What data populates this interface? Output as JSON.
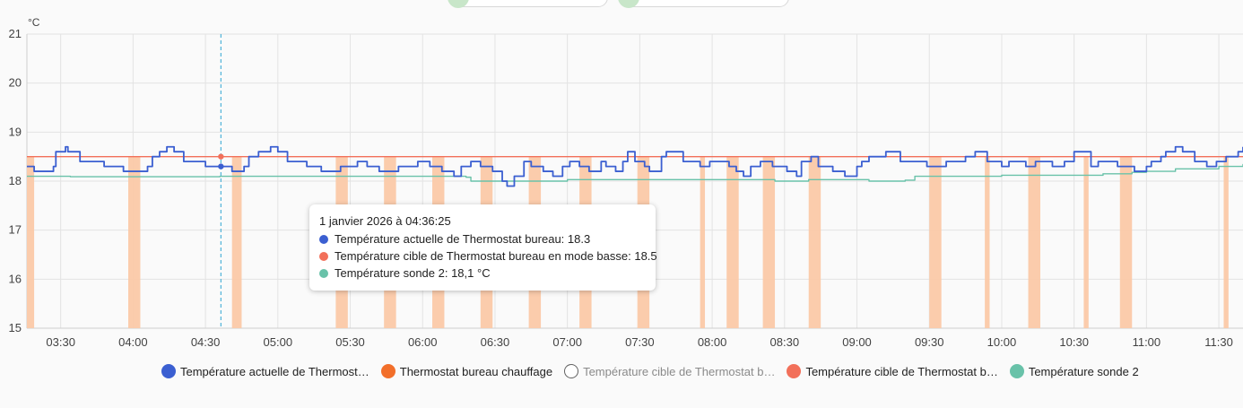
{
  "top_pills": [
    {
      "label": ""
    },
    {
      "label": ""
    }
  ],
  "tooltip": {
    "header": "1 janvier 2026 à 04:36:25",
    "rows": [
      {
        "text": "Température actuelle de Thermostat bureau: 18.3",
        "color": "#3b5fd1"
      },
      {
        "text": "Température cible de Thermostat bureau en mode basse: 18.5",
        "color": "#f2705a"
      },
      {
        "text": "Température sonde 2: 18,1 °C",
        "color": "#69c2a9"
      }
    ]
  },
  "legend": [
    {
      "label": "Température actuelle de Thermost…",
      "color": "#3b5fd1",
      "hidden": false
    },
    {
      "label": "Thermostat bureau chauffage",
      "color": "#f26f2a",
      "hidden": false
    },
    {
      "label": "Température cible de Thermostat b…",
      "color": "#9e9e9e",
      "hidden": true
    },
    {
      "label": "Température cible de Thermostat b…",
      "color": "#f2705a",
      "hidden": false
    },
    {
      "label": "Température sonde 2",
      "color": "#69c2a9",
      "hidden": false
    }
  ],
  "chart_data": {
    "type": "line",
    "ylabel": "°C",
    "ylim": [
      15,
      21
    ],
    "yticks": [
      15,
      16,
      17,
      18,
      19,
      20,
      21
    ],
    "xlim": [
      "03:16",
      "11:40"
    ],
    "xticks": [
      "03:30",
      "04:00",
      "04:30",
      "05:00",
      "05:30",
      "06:00",
      "06:30",
      "07:00",
      "07:30",
      "08:00",
      "08:30",
      "09:00",
      "09:30",
      "10:00",
      "10:30",
      "11:00",
      "11:30"
    ],
    "grid": true,
    "cursor_time": "04:36:25",
    "heating_periods": [
      [
        "03:16",
        "03:19"
      ],
      [
        "03:58",
        "04:03"
      ],
      [
        "04:41",
        "04:45"
      ],
      [
        "05:24",
        "05:29"
      ],
      [
        "05:44",
        "05:49"
      ],
      [
        "06:04",
        "06:09"
      ],
      [
        "06:24",
        "06:29"
      ],
      [
        "06:44",
        "06:49"
      ],
      [
        "07:05",
        "07:10"
      ],
      [
        "07:29",
        "07:34"
      ],
      [
        "07:55",
        "07:57"
      ],
      [
        "08:06",
        "08:11"
      ],
      [
        "08:21",
        "08:26"
      ],
      [
        "08:40",
        "08:45"
      ],
      [
        "09:30",
        "09:35"
      ],
      [
        "09:53",
        "09:55"
      ],
      [
        "10:11",
        "10:16"
      ],
      [
        "10:34",
        "10:36"
      ],
      [
        "10:49",
        "10:54"
      ],
      [
        "11:32",
        "11:34"
      ]
    ],
    "series": [
      {
        "name": "Température actuelle de Thermostat bureau",
        "color": "#3b5fd1",
        "points": [
          [
            "03:16",
            18.3
          ],
          [
            "03:19",
            18.2
          ],
          [
            "03:27",
            18.3
          ],
          [
            "03:28",
            18.6
          ],
          [
            "03:32",
            18.7
          ],
          [
            "03:33",
            18.6
          ],
          [
            "03:38",
            18.4
          ],
          [
            "03:48",
            18.3
          ],
          [
            "03:56",
            18.2
          ],
          [
            "04:06",
            18.3
          ],
          [
            "04:08",
            18.5
          ],
          [
            "04:11",
            18.6
          ],
          [
            "04:14",
            18.7
          ],
          [
            "04:17",
            18.6
          ],
          [
            "04:21",
            18.4
          ],
          [
            "04:30",
            18.3
          ],
          [
            "04:36",
            18.3
          ],
          [
            "04:41",
            18.2
          ],
          [
            "04:46",
            18.3
          ],
          [
            "04:48",
            18.5
          ],
          [
            "04:52",
            18.6
          ],
          [
            "04:57",
            18.7
          ],
          [
            "05:00",
            18.6
          ],
          [
            "05:04",
            18.4
          ],
          [
            "05:12",
            18.3
          ],
          [
            "05:18",
            18.2
          ],
          [
            "05:26",
            18.3
          ],
          [
            "05:33",
            18.4
          ],
          [
            "05:37",
            18.3
          ],
          [
            "05:42",
            18.2
          ],
          [
            "05:50",
            18.3
          ],
          [
            "05:58",
            18.4
          ],
          [
            "06:03",
            18.3
          ],
          [
            "06:08",
            18.2
          ],
          [
            "06:13",
            18.1
          ],
          [
            "06:16",
            18.3
          ],
          [
            "06:20",
            18.4
          ],
          [
            "06:24",
            18.3
          ],
          [
            "06:29",
            18.2
          ],
          [
            "06:33",
            18.0
          ],
          [
            "06:35",
            17.9
          ],
          [
            "06:38",
            18.1
          ],
          [
            "06:42",
            18.4
          ],
          [
            "06:45",
            18.3
          ],
          [
            "06:50",
            18.2
          ],
          [
            "06:54",
            18.1
          ],
          [
            "06:58",
            18.3
          ],
          [
            "07:01",
            18.4
          ],
          [
            "07:05",
            18.3
          ],
          [
            "07:09",
            18.2
          ],
          [
            "07:14",
            18.4
          ],
          [
            "07:16",
            18.3
          ],
          [
            "07:20",
            18.2
          ],
          [
            "07:23",
            18.4
          ],
          [
            "07:25",
            18.6
          ],
          [
            "07:28",
            18.4
          ],
          [
            "07:32",
            18.3
          ],
          [
            "07:34",
            18.2
          ],
          [
            "07:39",
            18.5
          ],
          [
            "07:41",
            18.6
          ],
          [
            "07:46",
            18.6
          ],
          [
            "07:48",
            18.4
          ],
          [
            "07:55",
            18.3
          ],
          [
            "07:59",
            18.4
          ],
          [
            "08:07",
            18.3
          ],
          [
            "08:10",
            18.2
          ],
          [
            "08:13",
            18.1
          ],
          [
            "08:16",
            18.3
          ],
          [
            "08:20",
            18.4
          ],
          [
            "08:25",
            18.3
          ],
          [
            "08:31",
            18.2
          ],
          [
            "08:35",
            18.1
          ],
          [
            "08:37",
            18.4
          ],
          [
            "08:41",
            18.5
          ],
          [
            "08:44",
            18.3
          ],
          [
            "08:50",
            18.2
          ],
          [
            "08:55",
            18.1
          ],
          [
            "09:00",
            18.3
          ],
          [
            "09:02",
            18.4
          ],
          [
            "09:05",
            18.5
          ],
          [
            "09:12",
            18.6
          ],
          [
            "09:18",
            18.4
          ],
          [
            "09:29",
            18.3
          ],
          [
            "09:37",
            18.4
          ],
          [
            "09:45",
            18.5
          ],
          [
            "09:49",
            18.6
          ],
          [
            "09:54",
            18.4
          ],
          [
            "10:00",
            18.3
          ],
          [
            "10:03",
            18.4
          ],
          [
            "10:10",
            18.3
          ],
          [
            "10:14",
            18.4
          ],
          [
            "10:21",
            18.3
          ],
          [
            "10:26",
            18.4
          ],
          [
            "10:30",
            18.6
          ],
          [
            "10:37",
            18.3
          ],
          [
            "10:40",
            18.4
          ],
          [
            "10:48",
            18.3
          ],
          [
            "10:55",
            18.2
          ],
          [
            "11:00",
            18.3
          ],
          [
            "11:02",
            18.4
          ],
          [
            "11:06",
            18.5
          ],
          [
            "11:08",
            18.6
          ],
          [
            "11:12",
            18.7
          ],
          [
            "11:15",
            18.6
          ],
          [
            "11:20",
            18.4
          ],
          [
            "11:25",
            18.3
          ],
          [
            "11:29",
            18.4
          ],
          [
            "11:33",
            18.5
          ],
          [
            "11:38",
            18.6
          ],
          [
            "11:40",
            18.7
          ]
        ]
      },
      {
        "name": "Température cible de Thermostat bureau en mode basse",
        "color": "#f2705a",
        "points": [
          [
            "03:16",
            18.5
          ],
          [
            "11:40",
            18.5
          ]
        ]
      },
      {
        "name": "Température sonde 2",
        "color": "#69c2a9",
        "points": [
          [
            "03:16",
            18.1
          ],
          [
            "03:32",
            18.1
          ],
          [
            "03:34",
            18.09
          ],
          [
            "04:36",
            18.1
          ],
          [
            "05:40",
            18.1
          ],
          [
            "06:18",
            18.08
          ],
          [
            "06:20",
            18.0
          ],
          [
            "07:00",
            18.03
          ],
          [
            "08:26",
            18.0
          ],
          [
            "08:40",
            18.03
          ],
          [
            "09:05",
            18.0
          ],
          [
            "09:20",
            18.02
          ],
          [
            "09:24",
            18.1
          ],
          [
            "10:00",
            18.12
          ],
          [
            "10:42",
            18.15
          ],
          [
            "10:54",
            18.18
          ],
          [
            "11:00",
            18.2
          ],
          [
            "11:12",
            18.25
          ],
          [
            "11:30",
            18.3
          ],
          [
            "11:40",
            18.35
          ]
        ]
      }
    ]
  }
}
